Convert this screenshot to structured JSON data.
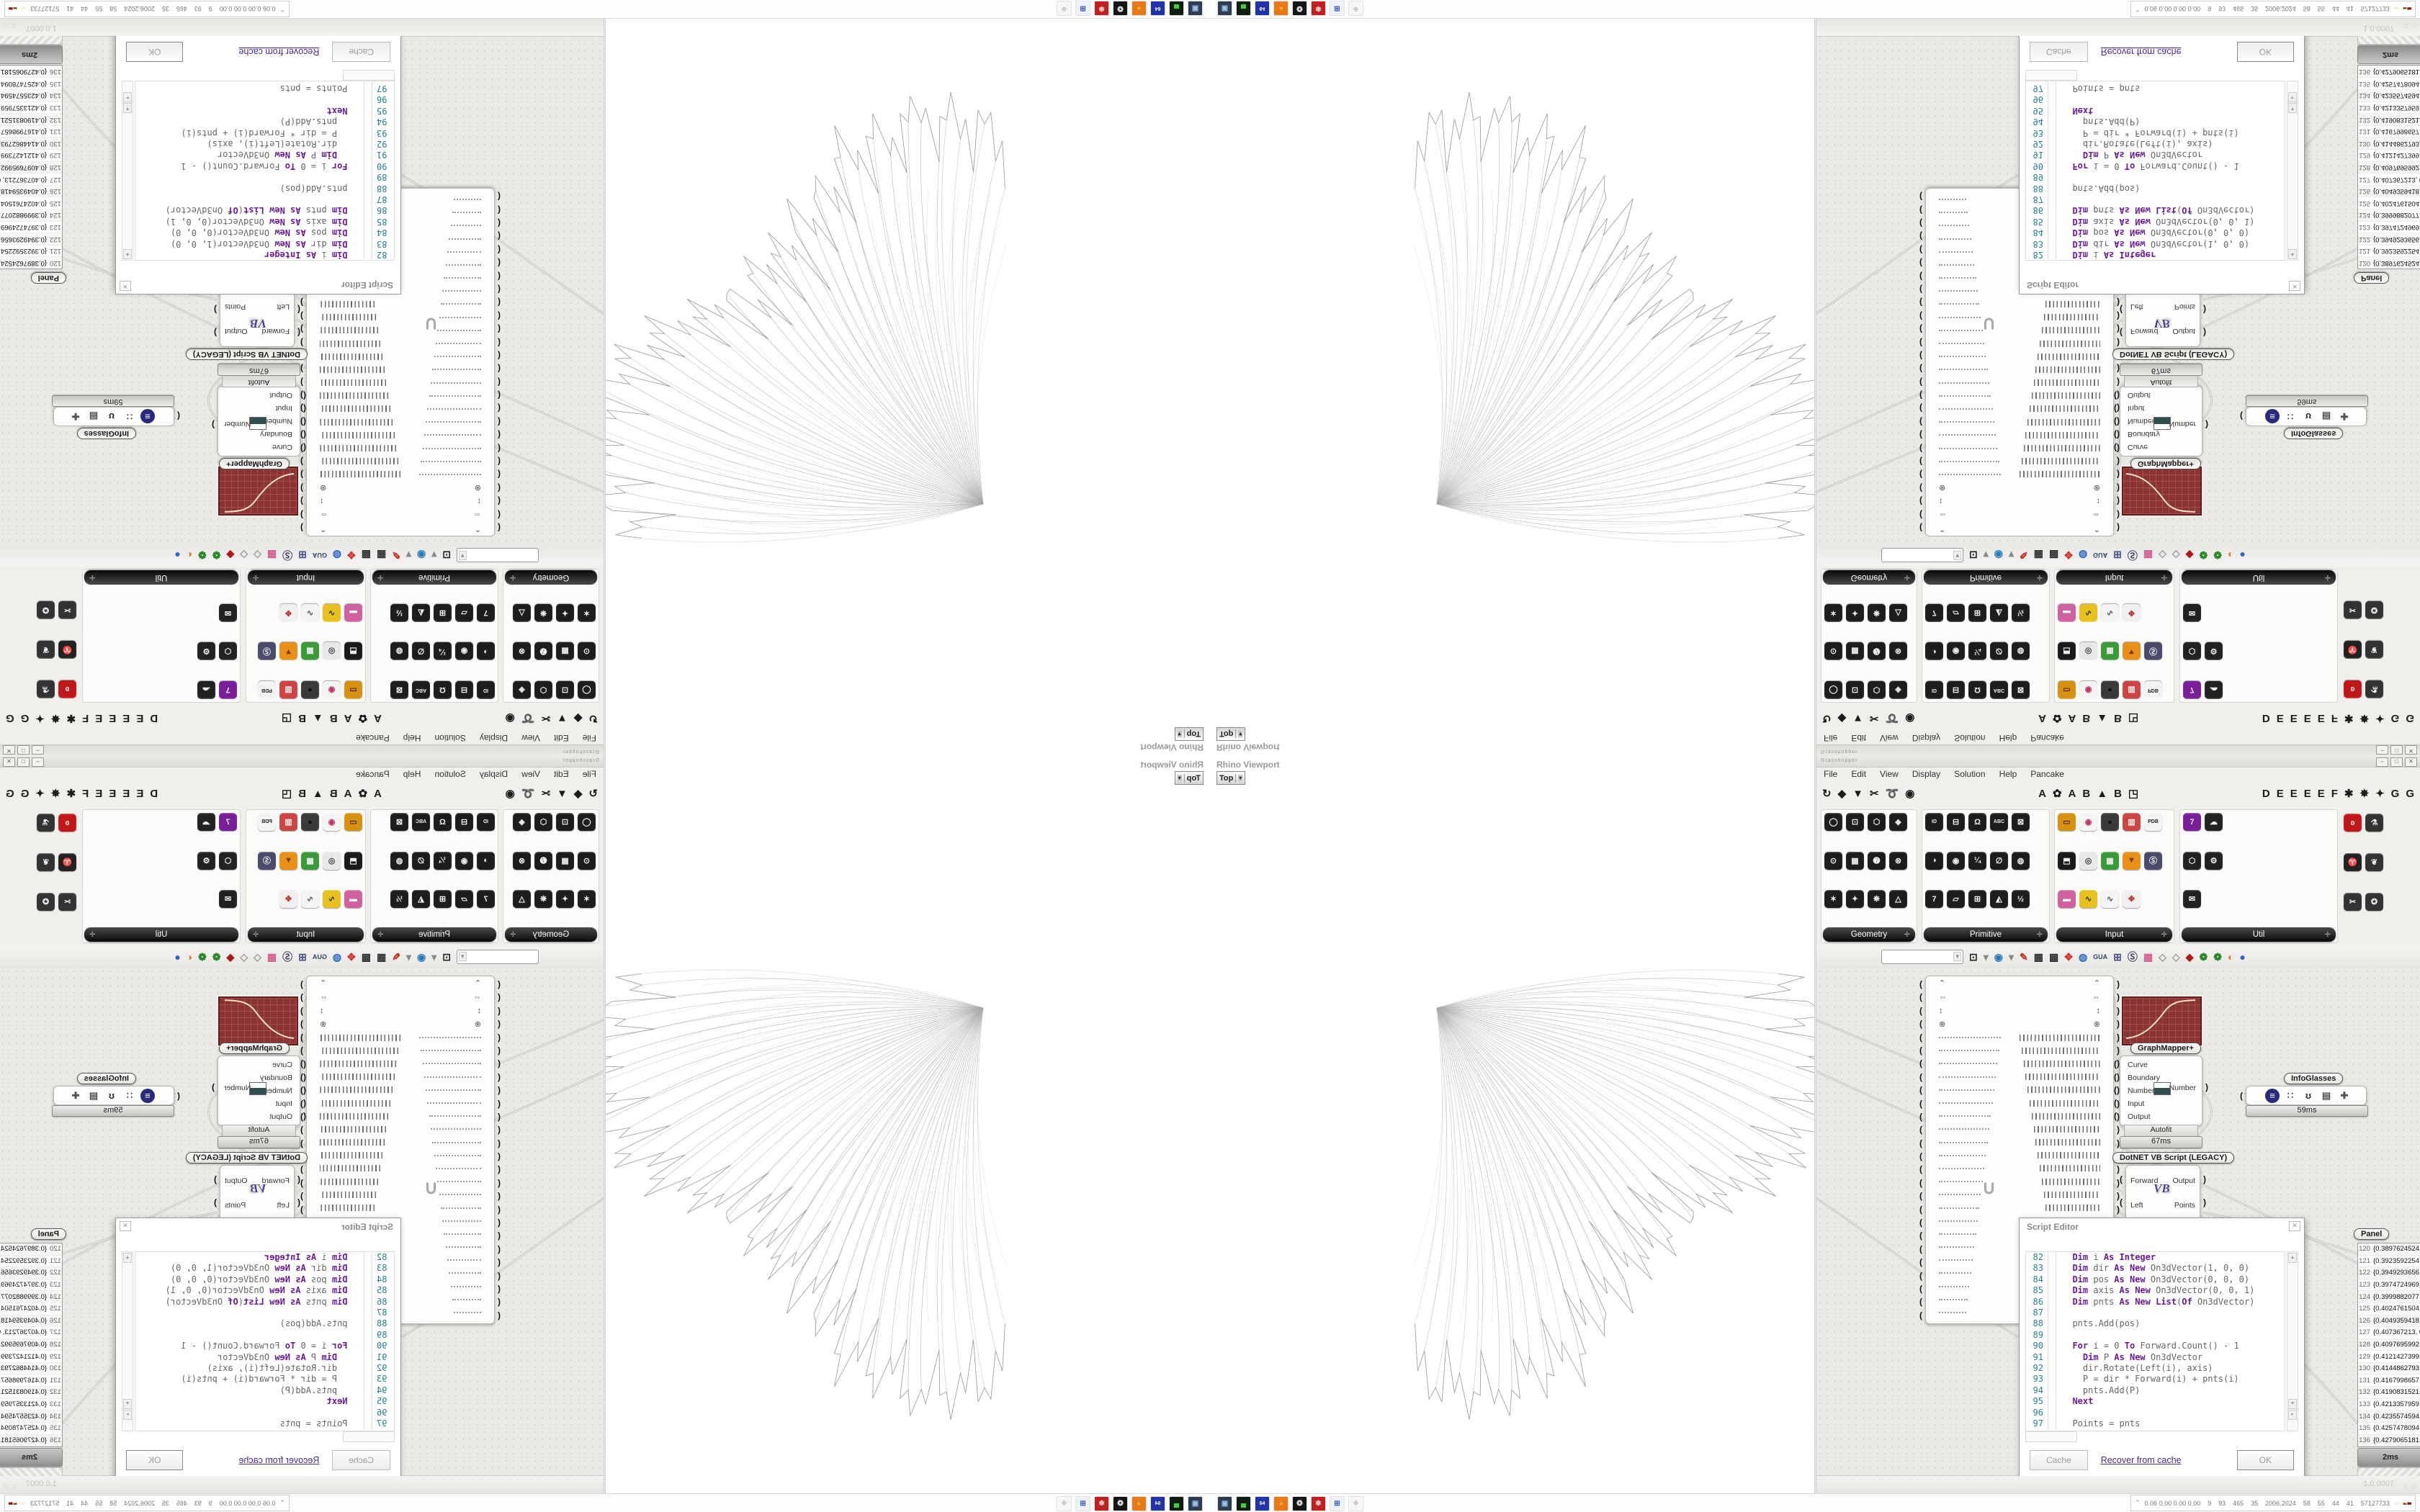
{
  "colors": {
    "accent_red": "#8a3434",
    "keyword_purple": "#6a1b9a",
    "line_number_teal": "#2a7f8f",
    "link_purple": "#4b2a8a",
    "tab_black": "#111111",
    "canvas_bg": "#ebe9e6"
  },
  "viewport": {
    "label": "Rhino Viewport",
    "view_button": "Top",
    "chevron": "▾"
  },
  "window": {
    "title": "Grasshopper",
    "minimize": "–",
    "maximize": "□",
    "close": "✕"
  },
  "menu": {
    "items": [
      "File",
      "Edit",
      "View",
      "Display",
      "Solution",
      "Help",
      "Pancake"
    ]
  },
  "main_toolbar": {
    "left_icons": [
      "↻",
      "◆",
      "▼",
      "✂",
      "➰",
      "◉"
    ],
    "mid_icons": [
      "A",
      "✿",
      "A",
      "B",
      "▲",
      "B",
      "◳"
    ],
    "right_icons": [
      "D",
      "E",
      "E",
      "E",
      "E",
      "F",
      "✱",
      "✸",
      "✦",
      "G",
      "G"
    ]
  },
  "palette": {
    "panels": [
      {
        "label": "Geometry",
        "plus": "✛",
        "icons": [
          {
            "g": "◯",
            "bg": "#1d1d1d"
          },
          {
            "g": "⊙",
            "bg": "#1d1d1d"
          },
          {
            "g": "✶",
            "bg": "#1d1d1d"
          },
          {
            "g": "⊡",
            "bg": "#1d1d1d"
          },
          {
            "g": "▦",
            "bg": "#1d1d1d"
          },
          {
            "g": "✦",
            "bg": "#1d1d1d"
          },
          {
            "g": "⬡",
            "bg": "#1d1d1d"
          },
          {
            "g": "➐",
            "bg": "#1d1d1d"
          },
          {
            "g": "❋",
            "bg": "#1d1d1d"
          },
          {
            "g": "◈",
            "bg": "#1d1d1d"
          },
          {
            "g": "⊗",
            "bg": "#1d1d1d"
          },
          {
            "g": "△",
            "bg": "#1d1d1d"
          }
        ]
      },
      {
        "label": "Primitive",
        "plus": "✛",
        "icons": [
          {
            "g": "ID",
            "bg": "#1d1d1d",
            "small": true
          },
          {
            "g": "◑",
            "bg": "#1d1d1d"
          },
          {
            "g": "7",
            "bg": "#1d1d1d"
          },
          {
            "g": "⊟",
            "bg": "#1d1d1d"
          },
          {
            "g": "◉",
            "bg": "#1d1d1d"
          },
          {
            "g": "▱",
            "bg": "#1d1d1d"
          },
          {
            "g": "Ω",
            "bg": "#1d1d1d"
          },
          {
            "g": "¼",
            "bg": "#1d1d1d"
          },
          {
            "g": "⊞",
            "bg": "#1d1d1d"
          },
          {
            "g": "ABC",
            "bg": "#1d1d1d",
            "small": true
          },
          {
            "g": "∅",
            "bg": "#1d1d1d"
          },
          {
            "g": "◭",
            "bg": "#1d1d1d"
          },
          {
            "g": "⊠",
            "bg": "#1d1d1d"
          },
          {
            "g": "◍",
            "bg": "#1d1d1d"
          },
          {
            "g": "½",
            "bg": "#1d1d1d"
          }
        ]
      },
      {
        "label": "Input",
        "plus": "✛",
        "icons": [
          {
            "g": "▭",
            "bg": "#d89010",
            "fg": "#4a2a00"
          },
          {
            "g": "⬒",
            "bg": "#1a1a1a"
          },
          {
            "g": "▬",
            "bg": "#d060a0",
            "fg": "#fff"
          },
          {
            "g": "◉",
            "bg": "#f4f4f4",
            "fg": "#c03060"
          },
          {
            "g": "◎",
            "bg": "#e8e8e8",
            "fg": "#444"
          },
          {
            "g": "∿",
            "bg": "#e8c020",
            "fg": "#333"
          },
          {
            "g": "●",
            "bg": "#3a3a3a",
            "fg": "#111"
          },
          {
            "g": "▦",
            "bg": "#3a9a3a"
          },
          {
            "g": "∿",
            "bg": "#f4f4f4",
            "fg": "#555"
          },
          {
            "g": "▥",
            "bg": "#cc4444"
          },
          {
            "g": "▼",
            "bg": "#e89018",
            "fg": "#6a3a00"
          },
          {
            "g": "✥",
            "bg": "#f0f0f0",
            "fg": "#c03030"
          },
          {
            "g": "PDB",
            "bg": "#f4f4f4",
            "fg": "#222",
            "small": true
          },
          {
            "g": "Ⓢ",
            "bg": "#4a4a6a"
          }
        ]
      },
      {
        "label": "Util",
        "plus": "✛",
        "icons": [
          {
            "g": "7",
            "bg": "#7a1f9a"
          },
          {
            "g": "⬡",
            "bg": "#222"
          },
          {
            "g": "✉",
            "bg": "#222"
          },
          {
            "g": "☁",
            "bg": "#222"
          },
          {
            "g": "⚙",
            "bg": "#222"
          }
        ]
      }
    ],
    "extra_icons": [
      {
        "g": "ʚ",
        "bg": "#c01818",
        "fg": "#ffdddd"
      },
      {
        "g": "♈",
        "bg": "#222"
      },
      {
        "g": "✂",
        "bg": "#333"
      },
      {
        "g": "⚗",
        "bg": "#333"
      },
      {
        "g": "❦",
        "bg": "#333"
      },
      {
        "g": "✪",
        "bg": "#333"
      }
    ]
  },
  "canvas_toolbar": {
    "zoom_value": "",
    "chevron": "▾",
    "icons": [
      {
        "g": "⊡",
        "c": "#222"
      },
      {
        "g": "▾",
        "c": "#888"
      },
      {
        "g": "◉",
        "c": "#2a7ab8"
      },
      {
        "g": "▾",
        "c": "#888"
      },
      {
        "g": "✎",
        "c": "#c03020"
      },
      {
        "g": "▦",
        "c": "#333"
      },
      {
        "g": "▩",
        "c": "#333"
      },
      {
        "g": "✥",
        "c": "#cc3333"
      },
      {
        "g": "◍",
        "c": "#2a6ac0"
      },
      {
        "g": "GUA",
        "c": "#334466"
      },
      {
        "g": "⊞",
        "c": "#445588"
      },
      {
        "g": "Ⓢ",
        "c": "#444466"
      },
      {
        "g": "▦",
        "c": "#d06090"
      },
      {
        "g": "◇",
        "c": "#999"
      },
      {
        "g": "◇",
        "c": "#999"
      },
      {
        "g": "◆",
        "c": "#b01818"
      },
      {
        "g": "❁",
        "c": "#2a8a2a"
      },
      {
        "g": "❁",
        "c": "#2a8a2a"
      },
      {
        "g": "◐",
        "c": "#d08020"
      },
      {
        "g": "●",
        "c": "#3060c0"
      }
    ]
  },
  "components": {
    "slider_bank": {
      "symbols": [
        "⌃",
        "⇔",
        "↕",
        "⊗"
      ],
      "line_rows": 22,
      "u_glyph": "∪"
    },
    "graph_mapper": {
      "label": "GraphMapper+"
    },
    "autofit": {
      "inputs": [
        "Curve",
        "Boundary",
        "Numbers",
        "Input",
        "Output"
      ],
      "output": "Number",
      "nickname": "Autofit",
      "time": "67ms"
    },
    "infoglasses": {
      "label": "InfoGlasses",
      "time": "59ms",
      "tiles": [
        {
          "g": "≡",
          "bg": "#2a2a7e",
          "fg": "#fff",
          "round": true
        },
        {
          "g": "∷",
          "bg": "transparent",
          "fg": "#555"
        },
        {
          "g": "ʊ",
          "bg": "transparent",
          "fg": "#222"
        },
        {
          "g": "▤",
          "bg": "transparent",
          "fg": "#555"
        },
        {
          "g": "✚",
          "bg": "transparent",
          "fg": "#555"
        }
      ]
    },
    "vbscript": {
      "label": "DotNET VB Script (LEGACY)",
      "inputs": [
        "Forward",
        "Left"
      ],
      "outputs": [
        "Output",
        "Points"
      ],
      "logo": "VB",
      "time": "152ms"
    },
    "panel": {
      "label": "Panel",
      "time": "2ms",
      "rows": [
        {
          "i": "120",
          "v": "{0.3897624524, 0.072094062, 0.0}"
        },
        {
          "i": "121",
          "v": "{0.3923592254, 0.0742527514, 0.0}"
        },
        {
          "i": "122",
          "v": "{0.3949293656, 0.0764430823, 0.0}"
        },
        {
          "i": "123",
          "v": "{0.3974724969, 0.0786647267, 0.0}"
        },
        {
          "i": "124",
          "v": "{0.3999882077, 0.0809173516, 0.0}"
        },
        {
          "i": "125",
          "v": "{0.4024761504, 0.0832006192, 0.0}"
        },
        {
          "i": "126",
          "v": "{0.4049359418, 0.085514187, 0.0}"
        },
        {
          "i": "127",
          "v": "{0.407367213, 0.087857708, 0.0}"
        },
        {
          "i": "128",
          "v": "{0.4097695992, 0.0902308305, 0.0}"
        },
        {
          "i": "129",
          "v": "{0.4121427399, 0.0926331987, 0.0}"
        },
        {
          "i": "130",
          "v": "{0.4144862793, 0.0950644521, 0.0}"
        },
        {
          "i": "131",
          "v": "{0.4167998657, 0.0975242261, 0.0}"
        },
        {
          "i": "132",
          "v": "{0.4190831521, 0.1000121516, 0.0}"
        },
        {
          "i": "133",
          "v": "{0.4213357959, 0.1025278554, 0.0}"
        },
        {
          "i": "134",
          "v": "{0.4235574594, 0.1050709601, 0.0}"
        },
        {
          "i": "135",
          "v": "{0.4257478094, 0.1076410839, 0.0}"
        },
        {
          "i": "136",
          "v": "{0.4279065181, 0.1102378409, 0.0}"
        },
        {
          "i": "137",
          "v": "{0.4300332629, 0.1129808404, 0.0}"
        }
      ]
    }
  },
  "script_editor": {
    "title": "Script Editor",
    "close": "✕",
    "lines": [
      {
        "n": "82",
        "t": "  Dim i As Integer"
      },
      {
        "n": "83",
        "t": "  Dim dir As New On3dVector(1, 0, 0)"
      },
      {
        "n": "84",
        "t": "  Dim pos As New On3dVector(0, 0, 0)"
      },
      {
        "n": "85",
        "t": "  Dim axis As New On3dVector(0, 0, 1)"
      },
      {
        "n": "86",
        "t": "  Dim pnts As New List(Of On3dVector)"
      },
      {
        "n": "87",
        "t": ""
      },
      {
        "n": "88",
        "t": "  pnts.Add(pos)"
      },
      {
        "n": "89",
        "t": ""
      },
      {
        "n": "90",
        "t": "  For i = 0 To Forward.Count() - 1"
      },
      {
        "n": "91",
        "t": "    Dim P As New On3dVector"
      },
      {
        "n": "92",
        "t": "    dir.Rotate(Left(i), axis)"
      },
      {
        "n": "93",
        "t": "    P = dir * Forward(i) + pnts(i)"
      },
      {
        "n": "94",
        "t": "    pnts.Add(P)"
      },
      {
        "n": "95",
        "t": "  Next"
      },
      {
        "n": "96",
        "t": ""
      },
      {
        "n": "97",
        "t": "  Points = pnts"
      }
    ],
    "keywords": [
      "Dim",
      "As",
      "New",
      "Integer",
      "List",
      "Of",
      "For",
      "To",
      "Next"
    ],
    "buttons": {
      "cache": "Cache",
      "recover": "Recover from cache",
      "ok": "OK"
    }
  },
  "status_bar": {
    "version": "1.0.0007",
    "grip": "⁙ ⁙"
  },
  "taskbar": {
    "icons": [
      {
        "name": "monitor-camera-icon",
        "g": "▣",
        "bg": "#2e3e52",
        "fg": "#9fc3e8"
      },
      {
        "name": "drive-icon",
        "g": "▄",
        "bg": "#0f1f0f",
        "fg": "#44cc44"
      },
      {
        "name": "floppy-64-icon",
        "g": "64",
        "bg": "#2233aa",
        "fg": "#ffffff"
      },
      {
        "name": "firefox-icon",
        "g": "◕",
        "bg": "#e87818",
        "fg": "#f8c838"
      },
      {
        "name": "cat-icon",
        "g": "❂",
        "bg": "#161616",
        "fg": "#eeeeee"
      },
      {
        "name": "red-badge-icon",
        "g": "✽",
        "bg": "#c02020",
        "fg": "#f0c0c0"
      },
      {
        "name": "window-icon",
        "g": "⊞",
        "bg": "#eef2fa",
        "fg": "#3355cc"
      },
      {
        "name": "ghost-icon",
        "g": "❖",
        "bg": "#f6f6f6",
        "fg": "#cccccc"
      }
    ],
    "tray": {
      "chevron": "⌃",
      "stats": "0.06 0.00 0.00 0.00    9    93    465    35    2006.2024    58    55    44    41    57127733"
    }
  }
}
